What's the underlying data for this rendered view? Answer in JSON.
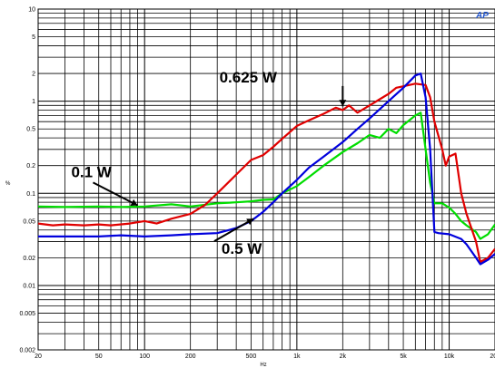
{
  "chart_data": {
    "type": "line",
    "title": "",
    "xlabel": "Hz",
    "ylabel": "%",
    "x_scale": "log",
    "y_scale": "log",
    "xlim": [
      20,
      20000
    ],
    "ylim": [
      0.002,
      10
    ],
    "grid": true,
    "x_tick_labels": [
      {
        "value": 20,
        "label": "20"
      },
      {
        "value": 50,
        "label": "50"
      },
      {
        "value": 100,
        "label": "100"
      },
      {
        "value": 200,
        "label": "200"
      },
      {
        "value": 500,
        "label": "500"
      },
      {
        "value": 1000,
        "label": "1k"
      },
      {
        "value": 2000,
        "label": "2k"
      },
      {
        "value": 5000,
        "label": "5k"
      },
      {
        "value": 10000,
        "label": "10k"
      },
      {
        "value": 20000,
        "label": "20k"
      }
    ],
    "y_tick_labels": [
      {
        "value": 10,
        "label": "10"
      },
      {
        "value": 5,
        "label": "5"
      },
      {
        "value": 2,
        "label": "2"
      },
      {
        "value": 1,
        "label": "1"
      },
      {
        "value": 0.5,
        "label": "0.5"
      },
      {
        "value": 0.2,
        "label": "0.2"
      },
      {
        "value": 0.1,
        "label": "0.1"
      },
      {
        "value": 0.05,
        "label": "0.05"
      },
      {
        "value": 0.02,
        "label": "0.02"
      },
      {
        "value": 0.01,
        "label": "0.01"
      },
      {
        "value": 0.005,
        "label": "0.005"
      },
      {
        "value": 0.002,
        "label": "0.002"
      }
    ],
    "series": [
      {
        "color": "#e00000",
        "x": [
          20,
          25,
          30,
          40,
          50,
          60,
          80,
          100,
          120,
          150,
          200,
          250,
          300,
          400,
          500,
          600,
          700,
          800,
          1000,
          1200,
          1500,
          1800,
          2000,
          2200,
          2500,
          3000,
          3500,
          4000,
          4500,
          5000,
          6000,
          7000,
          7500,
          8000,
          9000,
          9500,
          10000,
          11000,
          12000,
          13000,
          15000,
          16000,
          18000,
          20000
        ],
        "y": [
          0.047,
          0.045,
          0.046,
          0.045,
          0.046,
          0.045,
          0.047,
          0.05,
          0.047,
          0.053,
          0.06,
          0.075,
          0.1,
          0.16,
          0.23,
          0.26,
          0.32,
          0.39,
          0.54,
          0.62,
          0.73,
          0.85,
          0.8,
          0.9,
          0.75,
          0.9,
          1.05,
          1.2,
          1.4,
          1.45,
          1.55,
          1.5,
          1.1,
          0.6,
          0.3,
          0.2,
          0.25,
          0.27,
          0.1,
          0.06,
          0.03,
          0.018,
          0.02,
          0.025
        ]
      },
      {
        "color": "#0000dd",
        "x": [
          20,
          30,
          50,
          70,
          100,
          150,
          200,
          300,
          400,
          500,
          600,
          700,
          800,
          1000,
          1200,
          1500,
          2000,
          2500,
          3000,
          4000,
          5000,
          6000,
          6500,
          7000,
          7500,
          8000,
          8500,
          10000,
          12000,
          13000,
          15000,
          16000,
          18000,
          20000
        ],
        "y": [
          0.034,
          0.034,
          0.034,
          0.035,
          0.034,
          0.035,
          0.036,
          0.037,
          0.042,
          0.05,
          0.063,
          0.08,
          0.1,
          0.14,
          0.19,
          0.25,
          0.36,
          0.5,
          0.65,
          1.0,
          1.4,
          1.9,
          2.0,
          1.1,
          0.3,
          0.038,
          0.037,
          0.036,
          0.032,
          0.028,
          0.02,
          0.017,
          0.019,
          0.022
        ]
      },
      {
        "color": "#00dd00",
        "x": [
          20,
          30,
          50,
          70,
          100,
          150,
          200,
          300,
          400,
          500,
          600,
          700,
          800,
          1000,
          1200,
          1500,
          2000,
          2500,
          3000,
          3500,
          4000,
          4500,
          5000,
          6000,
          6500,
          7000,
          7500,
          8000,
          8500,
          9000,
          10000,
          11000,
          12000,
          13000,
          15000,
          16000,
          18000,
          20000
        ],
        "y": [
          0.072,
          0.071,
          0.072,
          0.071,
          0.072,
          0.076,
          0.072,
          0.078,
          0.08,
          0.082,
          0.085,
          0.086,
          0.1,
          0.12,
          0.15,
          0.2,
          0.28,
          0.35,
          0.43,
          0.4,
          0.5,
          0.45,
          0.55,
          0.7,
          0.75,
          0.3,
          0.13,
          0.078,
          0.078,
          0.078,
          0.07,
          0.06,
          0.05,
          0.045,
          0.038,
          0.032,
          0.036,
          0.046
        ]
      }
    ],
    "annotations": [
      {
        "text": "0.625 W",
        "label_x": 310,
        "label_y": 1.6,
        "arrow_to_x": 2000,
        "arrow_to_y": 0.88
      },
      {
        "text": "0.1 W",
        "label_x": 33,
        "label_y": 0.15,
        "arrow_to_x": 90,
        "arrow_to_y": 0.074
      },
      {
        "text": "0.5 W",
        "label_x": 320,
        "label_y": 0.022,
        "arrow_to_x": 520,
        "arrow_to_y": 0.053
      }
    ],
    "logo": "AP"
  }
}
